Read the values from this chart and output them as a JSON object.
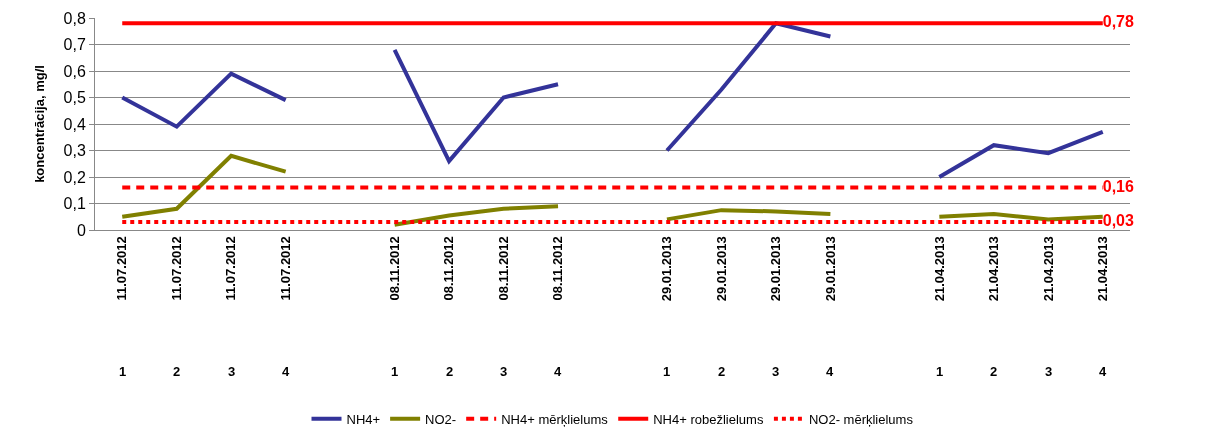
{
  "chart_data": {
    "type": "line",
    "ylabel": "koncentrācija, mg/l",
    "categories": [
      "11.07.2012\n1",
      "11.07.2012\n2",
      "11.07.2012\n3",
      "11.07.2012\n4",
      null,
      "08.11.2012\n1",
      "08.11.2012\n2",
      "08.11.2012\n3",
      "08.11.2012\n4",
      null,
      "29.01.2013\n1",
      "29.01.2013\n2",
      "29.01.2013\n3",
      "29.01.2013\n4",
      null,
      "21.04.2013\n1",
      "21.04.2013\n2",
      "21.04.2013\n3",
      "21.04.2013\n4"
    ],
    "series": [
      {
        "name": "NH4+",
        "color": "#333399",
        "values": [
          0.5,
          0.39,
          0.59,
          0.49,
          null,
          0.68,
          0.26,
          0.5,
          0.55,
          null,
          0.3,
          0.53,
          0.78,
          0.73,
          null,
          0.2,
          0.32,
          0.29,
          0.37
        ]
      },
      {
        "name": "NO2-",
        "color": "#808000",
        "values": [
          0.05,
          0.08,
          0.28,
          0.22,
          null,
          0.02,
          0.055,
          0.08,
          0.09,
          null,
          0.04,
          0.075,
          0.07,
          0.06,
          null,
          0.05,
          0.06,
          0.04,
          0.05
        ]
      },
      {
        "name": "NH4+ mērķlielums",
        "color": "#ff0000",
        "line_style": "dashed",
        "values": [
          0.16,
          0.16,
          0.16,
          0.16,
          0.16,
          0.16,
          0.16,
          0.16,
          0.16,
          0.16,
          0.16,
          0.16,
          0.16,
          0.16,
          0.16,
          0.16,
          0.16,
          0.16,
          0.16
        ],
        "value_labels": [
          null,
          null,
          null,
          null,
          null,
          null,
          null,
          null,
          null,
          null,
          null,
          null,
          null,
          null,
          null,
          null,
          null,
          null,
          "0,16"
        ]
      },
      {
        "name": "NH4+ robežlielums",
        "color": "#ff0000",
        "values": [
          0.78,
          0.78,
          0.78,
          0.78,
          0.78,
          0.78,
          0.78,
          0.78,
          0.78,
          0.78,
          0.78,
          0.78,
          0.78,
          0.78,
          0.78,
          0.78,
          0.78,
          0.78,
          0.78
        ],
        "value_labels": [
          null,
          null,
          null,
          null,
          null,
          null,
          null,
          null,
          null,
          null,
          null,
          null,
          null,
          null,
          null,
          null,
          null,
          null,
          "0,78"
        ]
      },
      {
        "name": "NO2- mērķlielums",
        "color": "#ff0000",
        "line_style": "dotted",
        "values": [
          0.03,
          0.03,
          0.03,
          0.03,
          0.03,
          0.03,
          0.03,
          0.03,
          0.03,
          0.03,
          0.03,
          0.03,
          0.03,
          0.03,
          0.03,
          0.03,
          0.03,
          0.03,
          0.03
        ],
        "value_labels": [
          null,
          null,
          null,
          null,
          null,
          null,
          null,
          null,
          null,
          null,
          null,
          null,
          null,
          null,
          null,
          null,
          null,
          null,
          "0,03"
        ]
      }
    ],
    "ylim": [
      0,
      0.8
    ],
    "yticks": [
      0,
      {
        "value": 0.1,
        "label": "0,1"
      },
      {
        "value": 0.2,
        "label": "0,2"
      },
      {
        "value": 0.3,
        "label": "0,3"
      },
      {
        "value": 0.4,
        "label": "0,4"
      },
      {
        "value": 0.5,
        "label": "0,5"
      },
      {
        "value": 0.6,
        "label": "0,6"
      },
      {
        "value": 0.7,
        "label": "0,7"
      },
      {
        "value": 0.8,
        "label": "0,8"
      }
    ],
    "grid": "y",
    "legend": "bottom",
    "marker": "none"
  }
}
